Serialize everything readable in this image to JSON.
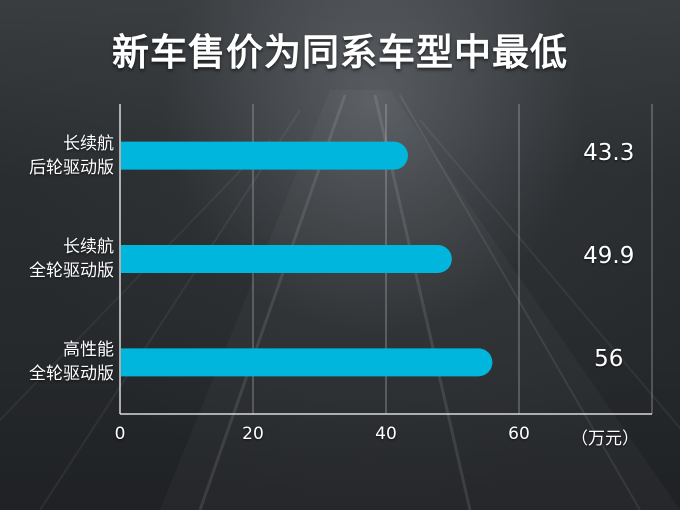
{
  "chart_data": {
    "type": "bar",
    "orientation": "horizontal",
    "title": "新车售价为同系车型中最低",
    "categories": [
      [
        "长续航",
        "后轮驱动版"
      ],
      [
        "长续航",
        "全轮驱动版"
      ],
      [
        "高性能",
        "全轮驱动版"
      ]
    ],
    "values": [
      43.3,
      49.9,
      56
    ],
    "value_labels": [
      "43.3",
      "49.9",
      "56"
    ],
    "xticks": [
      "0",
      "20",
      "40",
      "60"
    ],
    "xlim": [
      0,
      80
    ],
    "xlabel": "（万元）",
    "grid": true,
    "bar_color": "#00b6dc",
    "text_color": "#ffffff"
  }
}
